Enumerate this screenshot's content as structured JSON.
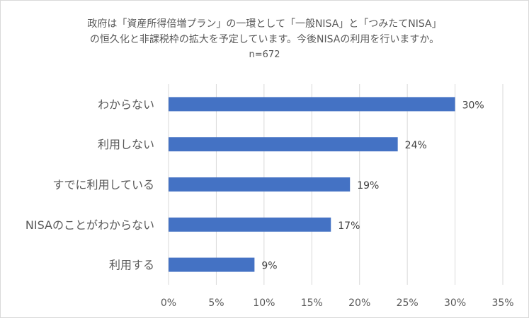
{
  "chart_data": {
    "type": "bar",
    "orientation": "horizontal",
    "title_lines": [
      "政府は「資産所得倍増プラン」の一環として「一般NISA」と「つみたてNISA」",
      "の恒久化と非課税枠の拡大を予定しています。今後NISAの利用を行いますか。"
    ],
    "subtitle": "n=672",
    "categories": [
      "わからない",
      "利用しない",
      "すでに利用している",
      "NISAのことがわからない",
      "利用する"
    ],
    "values": [
      30,
      24,
      19,
      17,
      9
    ],
    "data_labels": [
      "30%",
      "24%",
      "19%",
      "17%",
      "9%"
    ],
    "x_ticks": [
      "0%",
      "5%",
      "10%",
      "15%",
      "20%",
      "25%",
      "30%",
      "35%"
    ],
    "xlim": [
      0,
      35
    ],
    "grid": "vertical",
    "bar_color": "#4472c4",
    "grid_color": "#d9d9d9"
  }
}
